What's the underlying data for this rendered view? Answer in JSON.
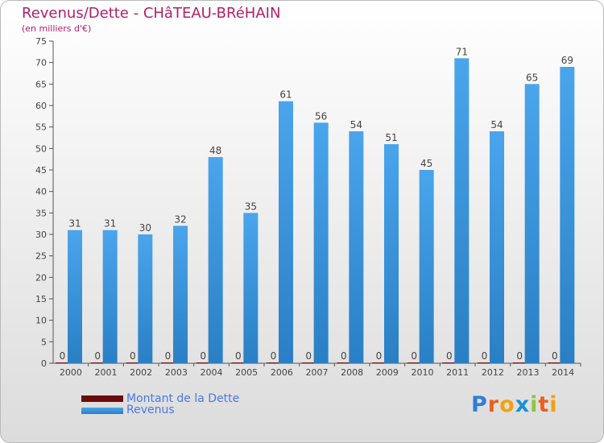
{
  "title": "Revenus/Dette - CHâTEAU-BRéHAIN",
  "subtitle": "(en milliers d'€)",
  "legend": {
    "debt": "Montant de la Dette",
    "revenue": "Revenus"
  },
  "logo": {
    "letters": [
      "P",
      "r",
      "o",
      "x",
      "i",
      "t",
      "i"
    ],
    "colors": [
      "#2f7ed8",
      "#e8601c",
      "#f2a20c",
      "#1a8fd8",
      "#8cc63f",
      "#e8601c",
      "#f2a20c"
    ]
  },
  "colors": {
    "revenue": "#3d9be6",
    "revenue_dark": "#2a7fc4",
    "debt": "#6b0b0b",
    "title": "#b0206b",
    "legend_text": "#4a78e8"
  },
  "chart_data": {
    "type": "bar",
    "title": "Revenus/Dette - CHâTEAU-BRéHAIN",
    "ylabel": "(en milliers d'€)",
    "categories": [
      "2000",
      "2001",
      "2002",
      "2003",
      "2004",
      "2005",
      "2006",
      "2007",
      "2008",
      "2009",
      "2010",
      "2011",
      "2012",
      "2013",
      "2014"
    ],
    "series": [
      {
        "name": "Montant de la Dette",
        "values": [
          0,
          0,
          0,
          0,
          0,
          0,
          0,
          0,
          0,
          0,
          0,
          0,
          0,
          0,
          0
        ]
      },
      {
        "name": "Revenus",
        "values": [
          31,
          31,
          30,
          32,
          48,
          35,
          61,
          56,
          54,
          51,
          45,
          71,
          54,
          65,
          69
        ]
      }
    ],
    "ylim": [
      0,
      75
    ],
    "yticks": [
      0,
      5,
      10,
      15,
      20,
      25,
      30,
      35,
      40,
      45,
      50,
      55,
      60,
      65,
      70,
      75
    ],
    "grid": false,
    "legend_position": "bottom-left"
  }
}
